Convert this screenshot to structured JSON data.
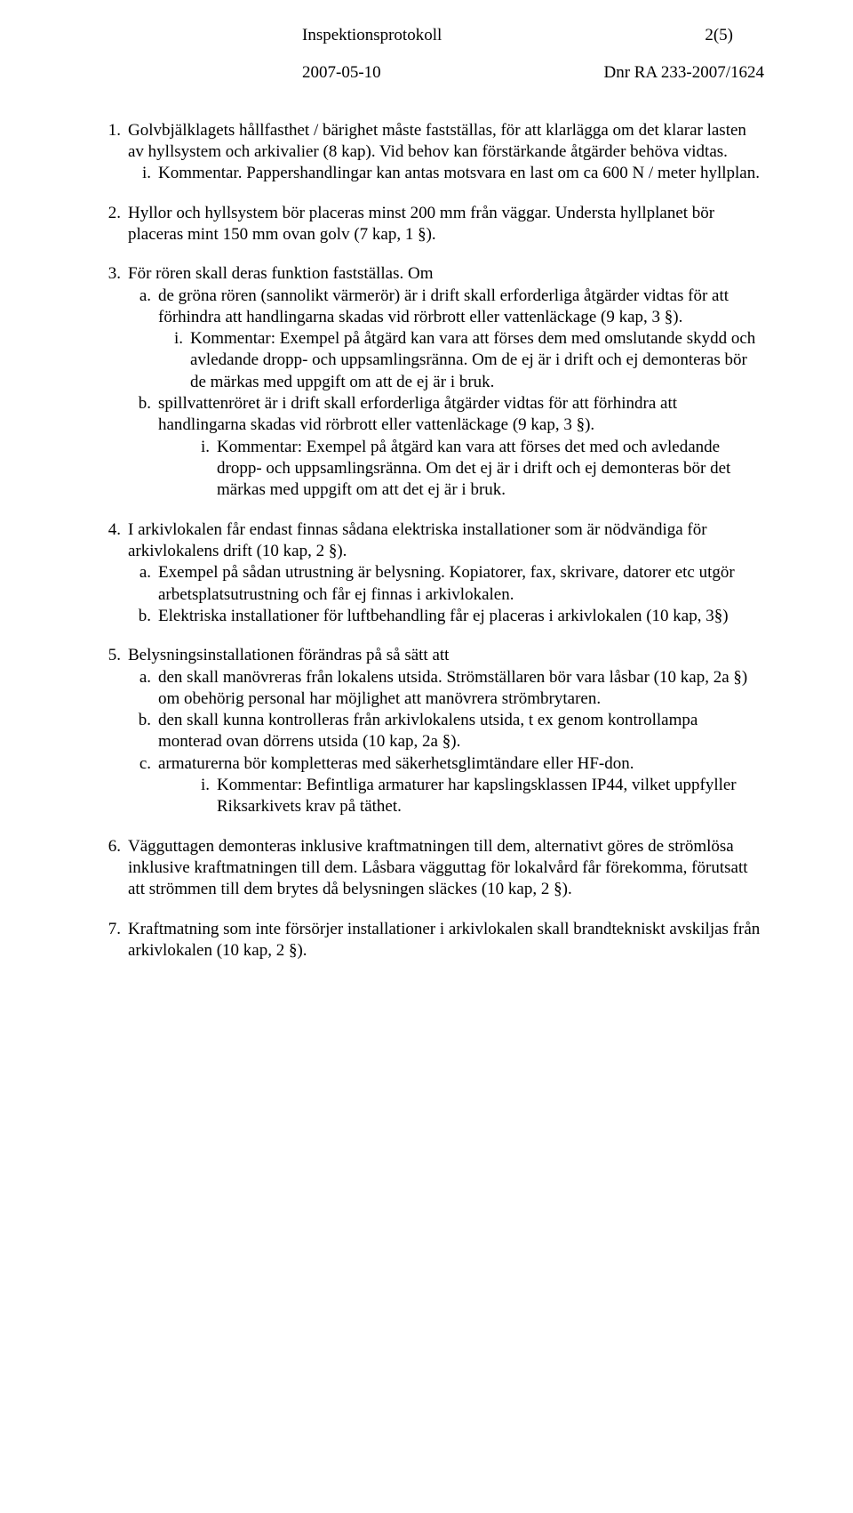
{
  "header": {
    "title": "Inspektionsprotokoll",
    "page_no": "2(5)",
    "date": "2007-05-10",
    "ref": "Dnr RA 233-2007/1624"
  },
  "items": [
    {
      "num": "1.",
      "text": "Golvbjälklagets hållfasthet / bärighet måste fastställas, för att klarlägga om det klarar lasten av hyllsystem och arkivalier (8 kap). Vid behov kan förstärkande åtgärder behöva vidtas.",
      "subs": [
        {
          "num": "i.",
          "text": "Kommentar. Pappershandlingar kan antas motsvara en last om ca 600 N / meter hyllplan."
        }
      ]
    },
    {
      "num": "2.",
      "text": "Hyllor och hyllsystem bör placeras minst 200 mm från väggar. Understa hyllplanet bör placeras mint 150 mm ovan golv (7 kap, 1 §)."
    },
    {
      "num": "3.",
      "text": "För rören skall deras funktion fastställas. Om",
      "subs": [
        {
          "num": "a.",
          "text": "de gröna rören (sannolikt värmerör) är i drift skall erforderliga åtgärder vidtas för att förhindra att handlingarna skadas vid rörbrott eller vattenläckage (9 kap, 3 §).",
          "subs": [
            {
              "num": "i.",
              "text": "Kommentar: Exempel på åtgärd kan vara att förses dem med omslutande skydd och avledande dropp- och uppsamlingsränna. Om de ej är i drift och ej demonteras bör de märkas med uppgift om att de ej är i bruk."
            }
          ]
        },
        {
          "num": "b.",
          "text": "spillvattenröret är i drift skall erforderliga åtgärder vidtas för att förhindra att handlingarna skadas vid rörbrott eller vattenläckage (9 kap, 3 §).",
          "subs": [
            {
              "num": "i.",
              "text": "Kommentar: Exempel på åtgärd kan vara att förses det med och avledande dropp- och uppsamlingsränna. Om det ej är i drift och ej demonteras bör det märkas med uppgift om att det ej är i bruk."
            }
          ]
        }
      ]
    },
    {
      "num": "4.",
      "text": "I arkivlokalen får endast finnas sådana elektriska installationer som är nödvändiga för arkivlokalens drift (10 kap, 2 §).",
      "subs": [
        {
          "num": "a.",
          "text": "Exempel på sådan utrustning är belysning. Kopiatorer, fax, skrivare, datorer etc utgör arbetsplatsutrustning och får ej finnas i arkivlokalen."
        },
        {
          "num": "b.",
          "text": "Elektriska installationer för luftbehandling får ej placeras i arkivlokalen (10 kap, 3§)"
        }
      ]
    },
    {
      "num": "5.",
      "text": "Belysningsinstallationen förändras på så sätt att",
      "subs": [
        {
          "num": "a.",
          "text": "den skall manövreras från lokalens utsida. Strömställaren bör vara låsbar (10 kap, 2a §) om obehörig personal har möjlighet att manövrera strömbrytaren."
        },
        {
          "num": "b.",
          "text": "den skall kunna kontrolleras från arkivlokalens utsida, t ex genom kontrollampa monterad ovan dörrens utsida (10 kap, 2a §)."
        },
        {
          "num": "c.",
          "text": "armaturerna bör kompletteras med säkerhetsglimtändare eller HF-don.",
          "subs": [
            {
              "num": "i.",
              "text": "Kommentar: Befintliga armaturer har kapslingsklassen IP44, vilket uppfyller Riksarkivets krav på täthet."
            }
          ]
        }
      ]
    },
    {
      "num": "6.",
      "text": "Vägguttagen demonteras inklusive kraftmatningen till dem, alternativt göres de strömlösa inklusive kraftmatningen till dem. Låsbara vägguttag för lokalvård får förekomma, förutsatt att strömmen till dem brytes då belysningen släckes (10 kap, 2 §)."
    },
    {
      "num": "7.",
      "text": "Kraftmatning som inte försörjer installationer i arkivlokalen skall brandtekniskt avskiljas från arkivlokalen (10 kap, 2 §)."
    }
  ]
}
